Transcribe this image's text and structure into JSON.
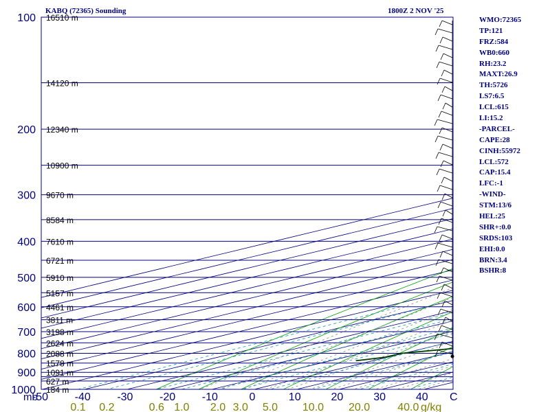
{
  "title_left": "KABQ (72365) Sounding",
  "title_right": "1800Z  2 NOV '25",
  "colors": {
    "isobar": "#000080",
    "isotherm": "#000080",
    "dry_adiabat": "#00a000",
    "moist_adiabat": "#888888",
    "mixing_ratio": "#20a0c0",
    "temperature": "#b00000",
    "dewpoint": "#004000",
    "parcel": "#0000a0",
    "mixing_label": "#808000",
    "axis_text": "#000080",
    "height_text": "#000000",
    "wind": "#000000"
  },
  "stats": [
    "WMO:72365",
    "TP:121",
    "FRZ:584",
    "WB0:660",
    "RH:23.2",
    "MAXT:26.9",
    "TH:5726",
    "LS7:6.5",
    "LCL:615",
    "LI:15.2",
    "-PARCEL-",
    "CAPE:28",
    "CINH:55972",
    "LCL:572",
    "CAP:15.4",
    "LFC:-1",
    "-WIND-",
    "STM:13/6",
    "HEL:25",
    "SHR+:0.0",
    "SRDS:103",
    "EHI:0.0",
    "BRN:3.4",
    "BSHR:8"
  ],
  "chart_data": {
    "type": "skew-t",
    "title": "KABQ (72365) Sounding",
    "time": "1800Z  2 NOV '25",
    "ylabel": "mb",
    "xlabel": "Temperature (C)",
    "pressure_ticks": [
      100,
      200,
      300,
      400,
      500,
      600,
      700,
      800,
      900,
      1000
    ],
    "pressure_tick_labels": [
      "100",
      "200",
      "300",
      "400",
      "500",
      "600",
      "700",
      "800",
      "900",
      "1000"
    ],
    "temperature_ticks": [
      -50,
      -40,
      -30,
      -20,
      -10,
      0,
      10,
      20,
      30,
      40
    ],
    "temperature_tick_labels": [
      "-50",
      "-40",
      "-30",
      "-20",
      "-10",
      "0",
      "10",
      "20",
      "30",
      "40"
    ],
    "corner_label": "C",
    "units_label": "mb",
    "isobars": [
      100,
      150,
      200,
      250,
      300,
      350,
      400,
      450,
      500,
      550,
      600,
      650,
      700,
      750,
      800,
      850,
      900,
      925,
      950,
      1000
    ],
    "height_labels": [
      {
        "p": 100,
        "text": "16510 m"
      },
      {
        "p": 150,
        "text": "14120 m"
      },
      {
        "p": 200,
        "text": "12340 m"
      },
      {
        "p": 250,
        "text": "10900 m"
      },
      {
        "p": 300,
        "text": "9670 m"
      },
      {
        "p": 350,
        "text": "8584 m"
      },
      {
        "p": 400,
        "text": "7610 m"
      },
      {
        "p": 450,
        "text": "6721 m"
      },
      {
        "p": 500,
        "text": "5910 m"
      },
      {
        "p": 550,
        "text": "5157 m"
      },
      {
        "p": 600,
        "text": "4461 m"
      },
      {
        "p": 650,
        "text": "3811 m"
      },
      {
        "p": 700,
        "text": "3198 m"
      },
      {
        "p": 750,
        "text": "2624 m"
      },
      {
        "p": 800,
        "text": "2088 m"
      },
      {
        "p": 850,
        "text": "1578 m"
      },
      {
        "p": 900,
        "text": "1091 m"
      },
      {
        "p": 950,
        "text": "627 m"
      },
      {
        "p": 1000,
        "text": "184 m"
      }
    ],
    "mixing_ratio_labels": [
      "0.1",
      "0.2",
      "0.6",
      "1.0",
      "2.0",
      "3.0",
      "5.0",
      "10.0",
      "20.0",
      "40.0"
    ],
    "mixing_ratio_values": [
      0.1,
      0.2,
      0.6,
      1.0,
      2.0,
      3.0,
      5.0,
      10.0,
      20.0,
      40.0
    ],
    "mixing_ratio_units": "g/kg",
    "temperature_profile": [
      {
        "p": 838,
        "t": 19.6
      },
      {
        "p": 800,
        "t": 19.8
      },
      {
        "p": 760,
        "t": 21.9
      },
      {
        "p": 725,
        "t": 19.2
      },
      {
        "p": 700,
        "t": 15.5
      },
      {
        "p": 650,
        "t": 9.0
      },
      {
        "p": 600,
        "t": 3.3
      },
      {
        "p": 570,
        "t": 0.3
      },
      {
        "p": 540,
        "t": -2.5
      },
      {
        "p": 500,
        "t": -5.5
      },
      {
        "p": 470,
        "t": -8.9
      },
      {
        "p": 430,
        "t": -12.8
      },
      {
        "p": 400,
        "t": -15.5
      },
      {
        "p": 350,
        "t": -20.9
      },
      {
        "p": 300,
        "t": -27.0
      },
      {
        "p": 250,
        "t": -33.4
      },
      {
        "p": 220,
        "t": -38.3
      },
      {
        "p": 200,
        "t": -41.4
      },
      {
        "p": 180,
        "t": -43.6
      },
      {
        "p": 170,
        "t": -44.0
      },
      {
        "p": 160,
        "t": -42.5
      },
      {
        "p": 140,
        "t": -44.8
      },
      {
        "p": 130,
        "t": -46.5
      },
      {
        "p": 125,
        "t": -48.9
      },
      {
        "p": 120,
        "t": -50.9
      },
      {
        "p": 110,
        "t": -51.2
      },
      {
        "p": 100,
        "t": -52.7
      }
    ],
    "dewpoint_profile": [
      {
        "p": 838,
        "t": -4.0
      },
      {
        "p": 820,
        "t": -0.6
      },
      {
        "p": 800,
        "t": -0.5
      },
      {
        "p": 760,
        "t": 12.4
      },
      {
        "p": 735,
        "t": 6.0
      },
      {
        "p": 700,
        "t": 5.0
      },
      {
        "p": 650,
        "t": 3.2
      },
      {
        "p": 600,
        "t": -1.3
      },
      {
        "p": 570,
        "t": -2.0
      },
      {
        "p": 550,
        "t": -23.4
      },
      {
        "p": 510,
        "t": -39.4
      },
      {
        "p": 450,
        "t": -23.4
      },
      {
        "p": 420,
        "t": -42.4
      },
      {
        "p": 390,
        "t": -40.2
      },
      {
        "p": 350,
        "t": -33.4
      },
      {
        "p": 330,
        "t": -38.0
      },
      {
        "p": 300,
        "t": -44.5
      },
      {
        "p": 270,
        "t": -44.5
      },
      {
        "p": 250,
        "t": -41.9
      },
      {
        "p": 200,
        "t": -52.7
      },
      {
        "p": 180,
        "t": -56.2
      },
      {
        "p": 150,
        "t": -60.4
      },
      {
        "p": 130,
        "t": -65.9
      },
      {
        "p": 110,
        "t": -70.5
      },
      {
        "p": 100,
        "t": -70.6
      }
    ],
    "parcel_profile": [
      {
        "p": 838,
        "t": 19.6
      },
      {
        "p": 800,
        "t": 16.0
      },
      {
        "p": 700,
        "t": 6.2
      },
      {
        "p": 600,
        "t": -3.4
      },
      {
        "p": 500,
        "t": -15.3
      },
      {
        "p": 400,
        "t": -28.5
      },
      {
        "p": 300,
        "t": -44.1
      },
      {
        "p": 250,
        "t": -53.2
      },
      {
        "p": 200,
        "t": -63.7
      },
      {
        "p": 150,
        "t": -76.2
      },
      {
        "p": 120,
        "t": -84.8
      }
    ]
  }
}
